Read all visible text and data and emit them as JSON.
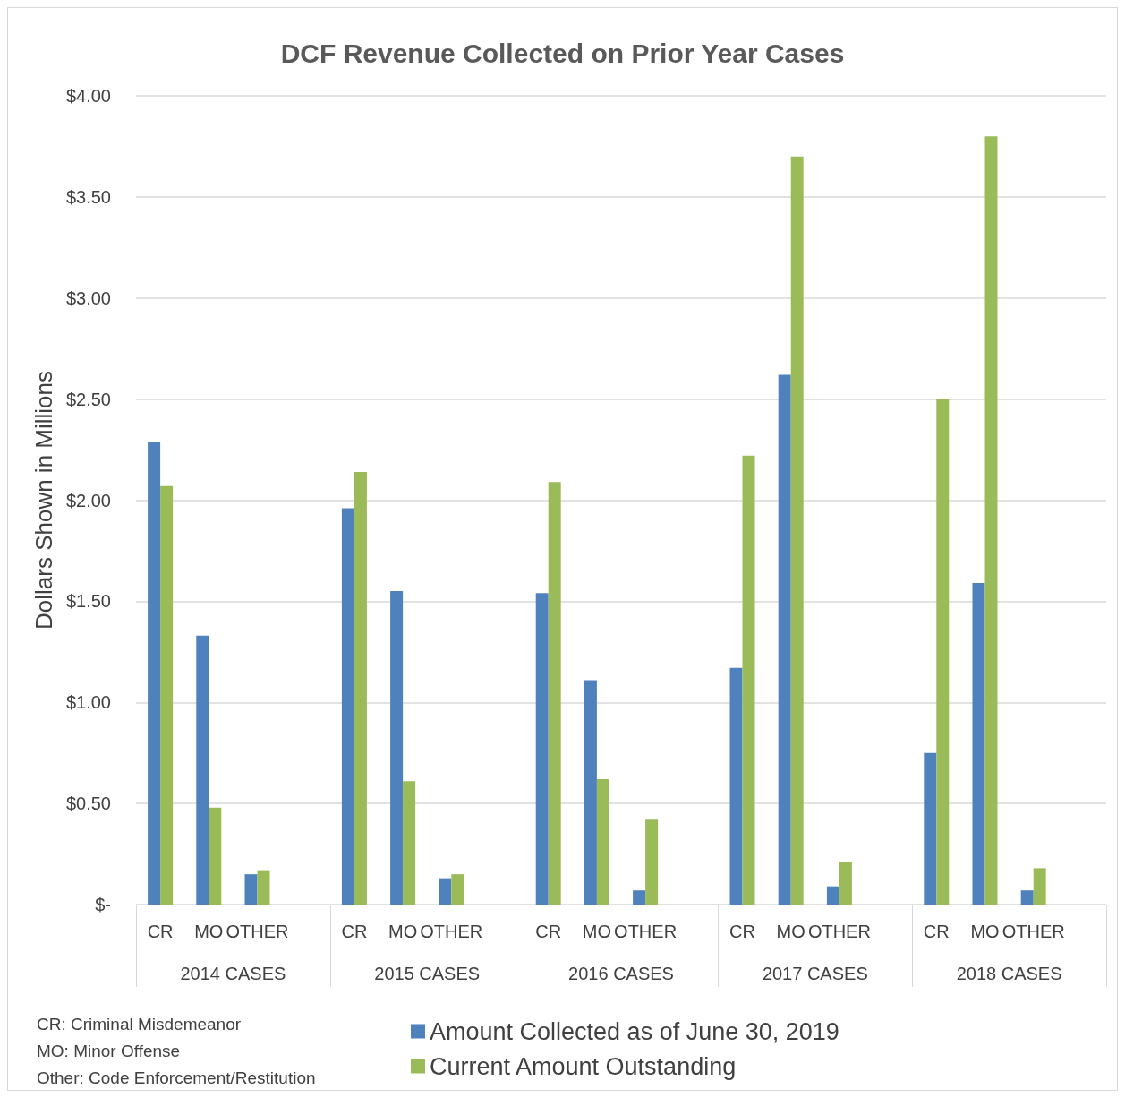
{
  "chart_data": {
    "type": "bar",
    "title": "DCF Revenue Collected on Prior Year Cases",
    "ylabel": "Dollars Shown in Millions",
    "categories": [
      "CR",
      "MO",
      "OTHER",
      null,
      "CR",
      "MO",
      "OTHER",
      null,
      "CR",
      "MO",
      "OTHER",
      null,
      "CR",
      "MO",
      "OTHER",
      null,
      "CR",
      "MO",
      "OTHER",
      null
    ],
    "series": [
      {
        "name": "Amount Collected as of June 30, 2019",
        "color": "#4f81bd",
        "values": [
          2.29,
          1.33,
          0.15,
          null,
          1.96,
          1.55,
          0.13,
          null,
          1.54,
          1.11,
          0.07,
          null,
          1.17,
          2.62,
          0.09,
          null,
          0.75,
          1.59,
          0.07,
          null
        ]
      },
      {
        "name": "Current Amount Outstanding",
        "color": "#9bbb59",
        "values": [
          2.07,
          0.48,
          0.17,
          null,
          2.14,
          0.61,
          0.15,
          null,
          2.09,
          0.62,
          0.42,
          null,
          2.22,
          3.7,
          0.21,
          null,
          2.5,
          3.8,
          0.18,
          null
        ]
      }
    ],
    "ylim": [
      0,
      4
    ],
    "yticks": [
      {
        "value": 0,
        "label": "$-"
      },
      {
        "value": 0.5,
        "label": "$0.50"
      },
      {
        "value": 1,
        "label": "$1.00"
      },
      {
        "value": 1.5,
        "label": "$1.50"
      },
      {
        "value": 2,
        "label": "$2.00"
      },
      {
        "value": 2.5,
        "label": "$2.50"
      },
      {
        "value": 3,
        "label": "$3.00"
      },
      {
        "value": 3.5,
        "label": "$3.50"
      },
      {
        "value": 4,
        "label": "$4.00"
      }
    ],
    "grid": "y",
    "legend": "bottom",
    "annotations": [
      "2014 CASES",
      "2015 CASES",
      "2016 CASES",
      "2017 CASES",
      "2018 CASES",
      "CR: Criminal Misdemeanor",
      "MO: Minor Offense",
      "Other: Code Enforcement/Restitution"
    ]
  }
}
